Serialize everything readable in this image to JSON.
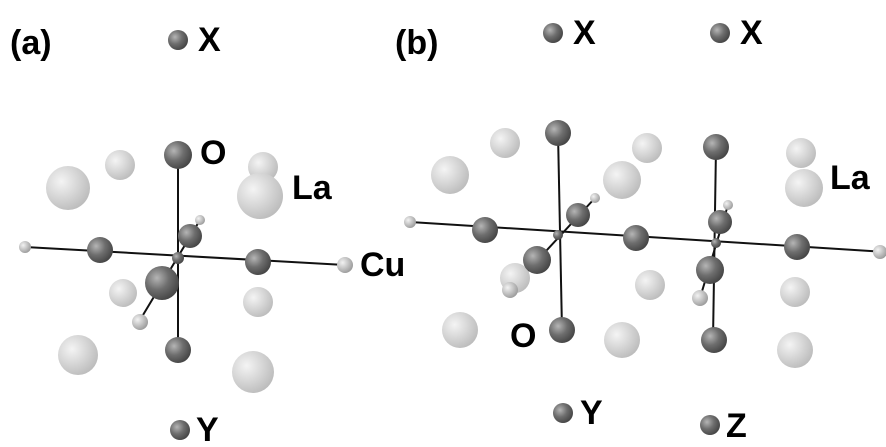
{
  "panels": [
    {
      "label": "(a)",
      "atom_labels": [
        "X",
        "O",
        "La",
        "Cu",
        "Y"
      ]
    },
    {
      "label": "(b)",
      "atom_labels": [
        "X",
        "X",
        "La",
        "O",
        "Y",
        "Z"
      ]
    }
  ]
}
